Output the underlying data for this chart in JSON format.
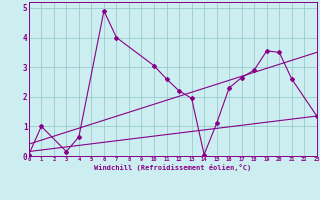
{
  "xlabel": "Windchill (Refroidissement éolien,°C)",
  "bg_color": "#cceef0",
  "line_color": "#880088",
  "grid_color": "#99cccc",
  "zigzag_x": [
    0,
    1,
    3,
    4,
    6,
    7,
    10,
    11,
    12,
    13,
    14,
    15,
    16,
    17,
    18,
    19,
    20,
    21,
    23
  ],
  "zigzag_y": [
    0.05,
    1.0,
    0.15,
    0.65,
    4.9,
    4.0,
    3.05,
    2.6,
    2.2,
    1.95,
    0.05,
    1.1,
    2.3,
    2.65,
    2.9,
    3.55,
    3.5,
    2.6,
    1.35
  ],
  "trend1_x": [
    0,
    23
  ],
  "trend1_y": [
    0.15,
    1.35
  ],
  "trend2_x": [
    0,
    23
  ],
  "trend2_y": [
    0.4,
    3.5
  ],
  "xlim": [
    0,
    23
  ],
  "ylim": [
    0,
    5.2
  ],
  "yticks": [
    0,
    1,
    2,
    3,
    4,
    5
  ],
  "xticks": [
    0,
    1,
    2,
    3,
    4,
    5,
    6,
    7,
    8,
    9,
    10,
    11,
    12,
    13,
    14,
    15,
    16,
    17,
    18,
    19,
    20,
    21,
    22,
    23
  ]
}
